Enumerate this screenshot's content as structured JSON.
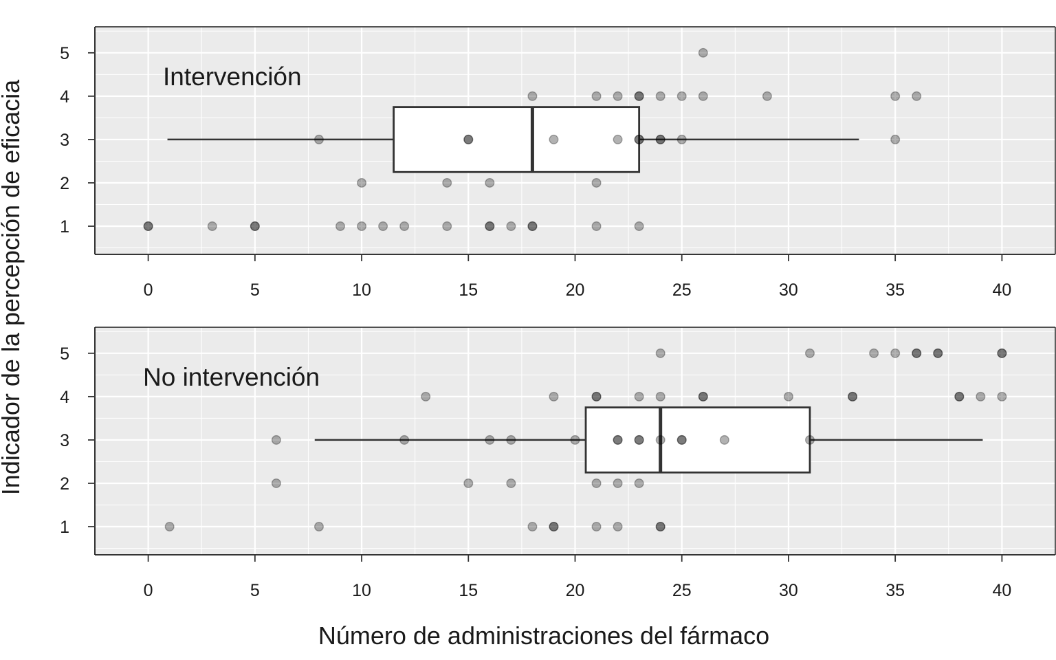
{
  "chart_data": {
    "type": "scatter",
    "overlay": "boxplot",
    "xlabel": "Número de administraciones del fármaco",
    "ylabel": "Indicador de la percepción de eficacia",
    "xlim": [
      -2.5,
      42.5
    ],
    "ylim": [
      0.35,
      5.6
    ],
    "x_ticks": [
      "0",
      "5",
      "10",
      "15",
      "20",
      "25",
      "30",
      "35",
      "40"
    ],
    "y_ticks": [
      "1",
      "2",
      "3",
      "4",
      "5"
    ],
    "grid": true,
    "panels": [
      {
        "label": "Intervención",
        "points": [
          [
            0,
            1
          ],
          [
            0,
            1
          ],
          [
            3,
            1
          ],
          [
            5,
            1
          ],
          [
            5,
            1
          ],
          [
            9,
            1
          ],
          [
            10,
            1
          ],
          [
            11,
            1
          ],
          [
            12,
            1
          ],
          [
            14,
            1
          ],
          [
            16,
            1
          ],
          [
            16,
            1
          ],
          [
            17,
            1
          ],
          [
            18,
            1
          ],
          [
            18,
            1
          ],
          [
            21,
            1
          ],
          [
            23,
            1
          ],
          [
            10,
            2
          ],
          [
            14,
            2
          ],
          [
            16,
            2
          ],
          [
            21,
            2
          ],
          [
            8,
            3
          ],
          [
            15,
            3
          ],
          [
            15,
            3
          ],
          [
            19,
            3
          ],
          [
            22,
            3
          ],
          [
            23,
            3
          ],
          [
            23,
            3
          ],
          [
            24,
            3
          ],
          [
            24,
            3
          ],
          [
            25,
            3
          ],
          [
            35,
            3
          ],
          [
            18,
            4
          ],
          [
            21,
            4
          ],
          [
            22,
            4
          ],
          [
            23,
            4
          ],
          [
            23,
            4
          ],
          [
            24,
            4
          ],
          [
            25,
            4
          ],
          [
            26,
            4
          ],
          [
            29,
            4
          ],
          [
            35,
            4
          ],
          [
            36,
            4
          ],
          [
            26,
            5
          ]
        ],
        "box": {
          "whisker_low": 0.9,
          "q1": 11.5,
          "median": 18,
          "q3": 23,
          "whisker_high": 33.3,
          "y_low": 2.25,
          "y_high": 3.75,
          "y_center": 3
        }
      },
      {
        "label": "No intervención",
        "points": [
          [
            1,
            1
          ],
          [
            8,
            1
          ],
          [
            18,
            1
          ],
          [
            19,
            1
          ],
          [
            19,
            1
          ],
          [
            21,
            1
          ],
          [
            22,
            1
          ],
          [
            24,
            1
          ],
          [
            24,
            1
          ],
          [
            6,
            2
          ],
          [
            15,
            2
          ],
          [
            17,
            2
          ],
          [
            21,
            2
          ],
          [
            22,
            2
          ],
          [
            23,
            2
          ],
          [
            6,
            3
          ],
          [
            12,
            3
          ],
          [
            16,
            3
          ],
          [
            17,
            3
          ],
          [
            20,
            3
          ],
          [
            22,
            3
          ],
          [
            22,
            3
          ],
          [
            23,
            3
          ],
          [
            23,
            3
          ],
          [
            24,
            3
          ],
          [
            25,
            3
          ],
          [
            25,
            3
          ],
          [
            27,
            3
          ],
          [
            31,
            3
          ],
          [
            13,
            4
          ],
          [
            19,
            4
          ],
          [
            21,
            4
          ],
          [
            21,
            4
          ],
          [
            23,
            4
          ],
          [
            24,
            4
          ],
          [
            26,
            4
          ],
          [
            26,
            4
          ],
          [
            30,
            4
          ],
          [
            33,
            4
          ],
          [
            33,
            4
          ],
          [
            38,
            4
          ],
          [
            38,
            4
          ],
          [
            39,
            4
          ],
          [
            40,
            4
          ],
          [
            24,
            5
          ],
          [
            31,
            5
          ],
          [
            34,
            5
          ],
          [
            35,
            5
          ],
          [
            36,
            5
          ],
          [
            36,
            5
          ],
          [
            37,
            5
          ],
          [
            37,
            5
          ],
          [
            40,
            5
          ],
          [
            40,
            5
          ]
        ],
        "box": {
          "whisker_low": 7.8,
          "q1": 20.5,
          "median": 24,
          "q3": 31,
          "whisker_high": 39.1,
          "y_low": 2.25,
          "y_high": 3.75,
          "y_center": 3
        }
      }
    ],
    "colors": {
      "panel_bg": "#ebebeb",
      "grid": "#ffffff",
      "point": "#000000",
      "box_line": "#333333",
      "box_fill": "#ffffff"
    }
  }
}
